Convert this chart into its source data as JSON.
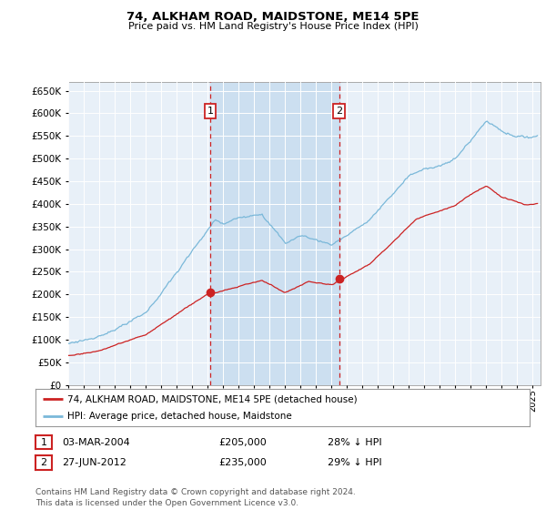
{
  "title": "74, ALKHAM ROAD, MAIDSTONE, ME14 5PE",
  "subtitle": "Price paid vs. HM Land Registry's House Price Index (HPI)",
  "hpi_color": "#7ab8d9",
  "price_color": "#cc2222",
  "background_color": "#ffffff",
  "plot_bg_color": "#e8f0f8",
  "grid_color": "#ffffff",
  "shade_color": "#ccdff0",
  "ylim": [
    0,
    670000
  ],
  "yticks": [
    0,
    50000,
    100000,
    150000,
    200000,
    250000,
    300000,
    350000,
    400000,
    450000,
    500000,
    550000,
    600000,
    650000
  ],
  "xlim_start": 1995.0,
  "xlim_end": 2025.5,
  "sale1_x": 2004.17,
  "sale1_y": 205000,
  "sale2_x": 2012.49,
  "sale2_y": 235000,
  "sale1_date": "03-MAR-2004",
  "sale1_price": "£205,000",
  "sale1_hpi": "28% ↓ HPI",
  "sale2_date": "27-JUN-2012",
  "sale2_price": "£235,000",
  "sale2_hpi": "29% ↓ HPI",
  "legend_line1": "74, ALKHAM ROAD, MAIDSTONE, ME14 5PE (detached house)",
  "legend_line2": "HPI: Average price, detached house, Maidstone",
  "footer": "Contains HM Land Registry data © Crown copyright and database right 2024.\nThis data is licensed under the Open Government Licence v3.0."
}
